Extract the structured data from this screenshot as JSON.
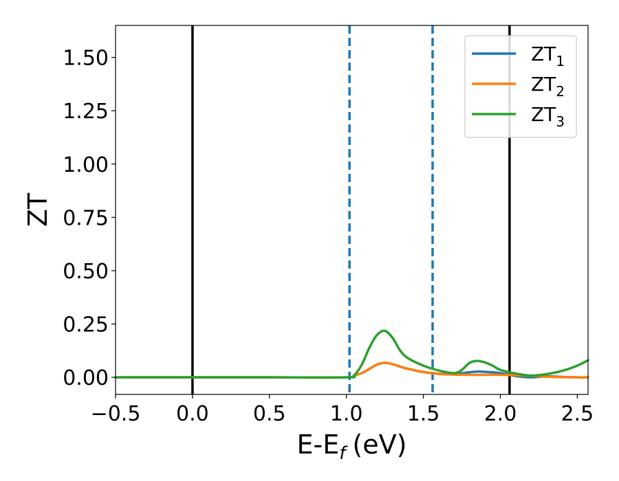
{
  "chart_data": {
    "type": "line",
    "xlabel": "E-E",
    "xlabel_sub": "f",
    "xlabel_unit": "(eV)",
    "ylabel": "ZT",
    "xlim": [
      -0.5,
      2.57
    ],
    "ylim": [
      -0.08,
      1.65
    ],
    "xticks": [
      -0.5,
      0.0,
      0.5,
      1.0,
      1.5,
      2.0,
      2.5
    ],
    "xtick_labels": [
      "−0.5",
      "0.0",
      "0.5",
      "1.0",
      "1.5",
      "2.0",
      "2.5"
    ],
    "yticks": [
      0.0,
      0.25,
      0.5,
      0.75,
      1.0,
      1.25,
      1.5
    ],
    "ytick_labels": [
      "0.00",
      "0.25",
      "0.50",
      "0.75",
      "1.00",
      "1.25",
      "1.50"
    ],
    "legend_position": "top-right",
    "grid": false,
    "vlines": [
      {
        "x": 0.0,
        "style": "solid",
        "color": "#000000"
      },
      {
        "x": 2.06,
        "style": "solid",
        "color": "#000000"
      },
      {
        "x": 1.02,
        "style": "dashed",
        "color": "#1f77b4"
      },
      {
        "x": 1.56,
        "style": "dashed",
        "color": "#1f77b4"
      }
    ],
    "series": [
      {
        "name": "ZT",
        "name_sub": "1",
        "color": "#1f77b4",
        "x": [
          -0.5,
          0.0,
          0.5,
          1.0,
          1.05,
          1.1,
          1.15,
          1.2,
          1.25,
          1.3,
          1.35,
          1.4,
          1.5,
          1.6,
          1.7,
          1.8,
          1.85,
          1.9,
          2.0,
          2.1,
          2.2,
          2.3,
          2.4,
          2.5,
          2.57
        ],
        "y": [
          0.0,
          0.0,
          0.0,
          0.0,
          0.008,
          0.02,
          0.04,
          0.06,
          0.068,
          0.062,
          0.05,
          0.04,
          0.025,
          0.017,
          0.016,
          0.024,
          0.027,
          0.026,
          0.02,
          0.006,
          0.0,
          0.005,
          0.002,
          0.0,
          0.0
        ]
      },
      {
        "name": "ZT",
        "name_sub": "2",
        "color": "#ff7f0e",
        "x": [
          -0.5,
          0.0,
          0.5,
          1.0,
          1.05,
          1.1,
          1.15,
          1.2,
          1.25,
          1.3,
          1.35,
          1.4,
          1.5,
          1.6,
          1.7,
          1.8,
          1.85,
          1.9,
          2.0,
          2.1,
          2.2,
          2.3,
          2.4,
          2.5,
          2.57
        ],
        "y": [
          0.0,
          0.0,
          0.0,
          0.0,
          0.008,
          0.02,
          0.04,
          0.06,
          0.068,
          0.062,
          0.05,
          0.04,
          0.025,
          0.016,
          0.013,
          0.012,
          0.012,
          0.012,
          0.012,
          0.01,
          0.007,
          0.003,
          0.001,
          0.0,
          0.0
        ]
      },
      {
        "name": "ZT",
        "name_sub": "3",
        "color": "#2ca02c",
        "x": [
          -0.5,
          0.0,
          0.5,
          1.0,
          1.05,
          1.1,
          1.15,
          1.2,
          1.25,
          1.3,
          1.35,
          1.4,
          1.5,
          1.6,
          1.7,
          1.75,
          1.8,
          1.85,
          1.9,
          1.95,
          2.0,
          2.1,
          2.2,
          2.3,
          2.4,
          2.5,
          2.57
        ],
        "y": [
          0.0,
          0.0,
          0.0,
          0.0,
          0.01,
          0.06,
          0.14,
          0.2,
          0.218,
          0.185,
          0.125,
          0.09,
          0.055,
          0.032,
          0.02,
          0.035,
          0.068,
          0.077,
          0.07,
          0.055,
          0.035,
          0.018,
          0.008,
          0.015,
          0.03,
          0.055,
          0.08
        ]
      }
    ]
  }
}
